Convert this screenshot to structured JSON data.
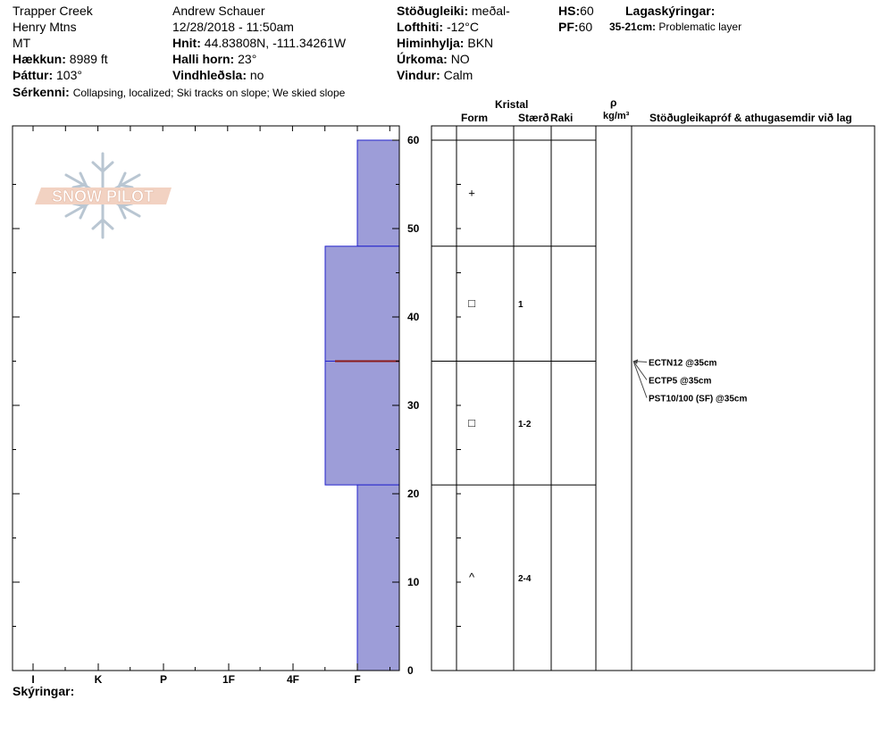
{
  "header": {
    "location": "Trapper Creek",
    "range": "Henry Mtns",
    "state": "MT",
    "elevation_label": "Hækkun:",
    "elevation_value": "8989 ft",
    "aspect_label": "Þáttur:",
    "aspect_value": "103°",
    "observer": "Andrew Schauer",
    "datetime": "12/28/2018 - 11:50am",
    "coords_label": "Hnit:",
    "coords_value": "44.83808N, -111.34261W",
    "slope_label": "Halli horn:",
    "slope_value": "23°",
    "wind_loading_label": "Vindhleðsla:",
    "wind_loading_value": "no",
    "stability_label": "Stöðugleiki:",
    "stability_value": "meðal-",
    "air_temp_label": "Lofthiti:",
    "air_temp_value": "-12°C",
    "sky_label": "Himinhylja:",
    "sky_value": "BKN",
    "precip_label": "Úrkoma:",
    "precip_value": "NO",
    "wind_label": "Vindur:",
    "wind_value": "Calm",
    "hs_label": "HS:",
    "hs_value": "60",
    "pf_label": "PF:",
    "pf_value": "60",
    "layer_notes_label": "Lagaskýringar:",
    "layer_note_range": "35-21cm:",
    "layer_note_text": "Problematic layer",
    "features_label": "Sérkenni:",
    "features_value": "Collapsing, localized;  Ski tracks on slope;  We skied slope",
    "legend_label": "Skýringar:"
  },
  "logo": {
    "text": "SNOW PILOT"
  },
  "columns": {
    "crystal": "Kristal",
    "form": "Form",
    "size": "Stærð",
    "moisture": "Raki",
    "rho": "ρ",
    "density_unit": "kg/m³",
    "tests_header": "Stöðugleikapróf & athugasemdir við lag"
  },
  "colors": {
    "hardness_fill": "#9d9dd8",
    "layer_line": "#2222cc",
    "problem_line": "#8b1a1a"
  },
  "chart_data": {
    "type": "bar",
    "orientation": "horizontal",
    "hardness_scale": [
      "I",
      "K",
      "P",
      "1F",
      "4F",
      "F"
    ],
    "y_ticks": [
      0,
      10,
      20,
      30,
      40,
      50,
      60
    ],
    "ylim": [
      0,
      60
    ],
    "layers": [
      {
        "top": 60,
        "bottom": 48,
        "hardness": "F",
        "form": "+",
        "size": ""
      },
      {
        "top": 48,
        "bottom": 35,
        "hardness": "4F-F",
        "form": "□",
        "size": "1"
      },
      {
        "top": 35,
        "bottom": 21,
        "hardness": "4F-F",
        "form": "□",
        "size": "1-2"
      },
      {
        "top": 21,
        "bottom": 0,
        "hardness": "F",
        "form": "^",
        "size": "2-4"
      }
    ],
    "problem_layer_depth": 35,
    "tests": [
      {
        "text": "ECTN12 @35cm",
        "depth": 35
      },
      {
        "text": "ECTP5 @35cm",
        "depth": 35
      },
      {
        "text": "PST10/100 (SF) @35cm",
        "depth": 35
      }
    ]
  }
}
